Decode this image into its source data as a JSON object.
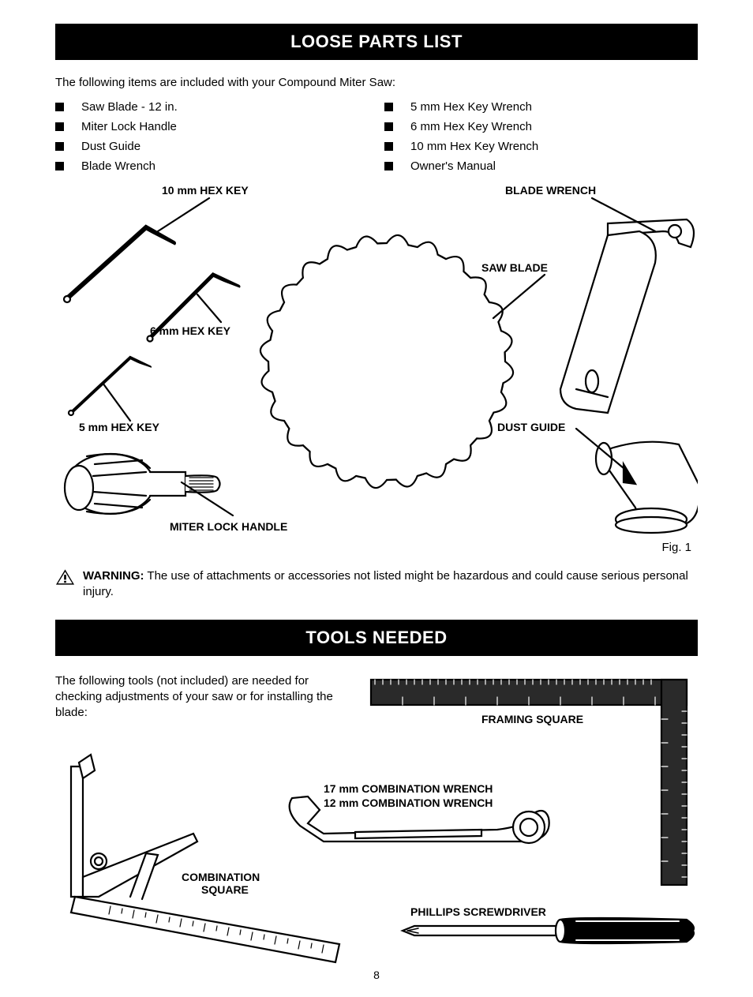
{
  "section1": {
    "header": "LOOSE PARTS LIST",
    "intro": "The following items are included with your Compound Miter Saw:",
    "left_items": [
      "Saw Blade - 12 in.",
      "Miter Lock Handle",
      "Dust Guide",
      "Blade Wrench"
    ],
    "right_items": [
      "5 mm Hex Key Wrench",
      "6 mm Hex Key Wrench",
      "10 mm Hex Key Wrench",
      "Owner's Manual"
    ],
    "labels": {
      "hex10": "10 mm HEX KEY",
      "hex6": "6 mm HEX KEY",
      "hex5": "5 mm HEX KEY",
      "miter": "MITER LOCK HANDLE",
      "blade_wrench": "BLADE WRENCH",
      "saw_blade": "SAW BLADE",
      "dust_guide": "DUST GUIDE"
    },
    "caption": "Fig. 1"
  },
  "warning": {
    "label": "WARNING:",
    "text": "The use of attachments or accessories not listed might be hazardous and could cause serious personal injury."
  },
  "section2": {
    "header": "TOOLS NEEDED",
    "intro": "The following tools (not included) are needed for checking adjustments of your saw or for installing the blade:",
    "labels": {
      "framing": "FRAMING SQUARE",
      "combo_wrench1": "17 mm COMBINATION WRENCH",
      "combo_wrench2": "12 mm COMBINATION WRENCH",
      "combo_square": "COMBINATION",
      "combo_square2": "SQUARE",
      "phillips": "PHILLIPS SCREWDRIVER"
    }
  },
  "page_number": "8"
}
